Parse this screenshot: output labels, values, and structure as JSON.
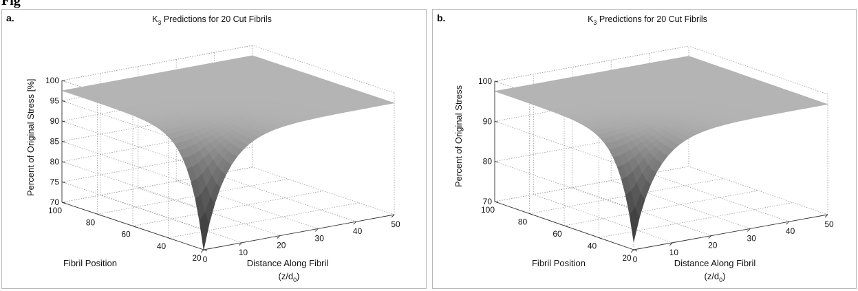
{
  "figure_caption": "Fig",
  "chart_data": [
    {
      "type": "surface",
      "panel_label": "a.",
      "title": "K3 Predictions for 20 Cut Fibrils",
      "title_main": "K",
      "title_sub": "3",
      "title_rest": " Predictions for 20 Cut Fibrils",
      "xlabel": "Distance Along Fibril",
      "xlabel_line2_main": "(z/d",
      "xlabel_line2_sub": "0",
      "xlabel_line2_end": ")",
      "ylabel": "Fibril Position",
      "zlabel": "Percent of Original Stress [%]",
      "x_ticks": [
        "0",
        "10",
        "20",
        "30",
        "40",
        "50"
      ],
      "y_ticks": [
        "20",
        "40",
        "60",
        "80",
        "100"
      ],
      "z_ticks": [
        "70",
        "75",
        "80",
        "85",
        "90",
        "95",
        "100"
      ],
      "xlim": [
        0,
        50
      ],
      "ylim": [
        20,
        100
      ],
      "zlim": [
        70,
        100
      ],
      "z_minimum": 70,
      "z_plateau": 97.5,
      "grid": true,
      "colormap": "gray"
    },
    {
      "type": "surface",
      "panel_label": "b.",
      "title": "K3 Predictions for 20 Cut Fibrils",
      "title_main": "K",
      "title_sub": "3",
      "title_rest": " Predictions for 20 Cut Fibrils",
      "xlabel": "Distance Along Fibril",
      "xlabel_line2_main": "(z/d",
      "xlabel_line2_sub": "0",
      "xlabel_line2_end": ")",
      "ylabel": "Fibril Position",
      "zlabel": "Percent of Original Stress",
      "x_ticks": [
        "0",
        "10",
        "20",
        "30",
        "40",
        "50"
      ],
      "y_ticks": [
        "20",
        "40",
        "60",
        "80",
        "100"
      ],
      "z_ticks": [
        "70",
        "80",
        "90",
        "100"
      ],
      "xlim": [
        0,
        50
      ],
      "ylim": [
        20,
        100
      ],
      "zlim": [
        70,
        100
      ],
      "z_minimum": 72,
      "z_plateau": 97.5,
      "grid": true,
      "colormap": "gray"
    }
  ]
}
